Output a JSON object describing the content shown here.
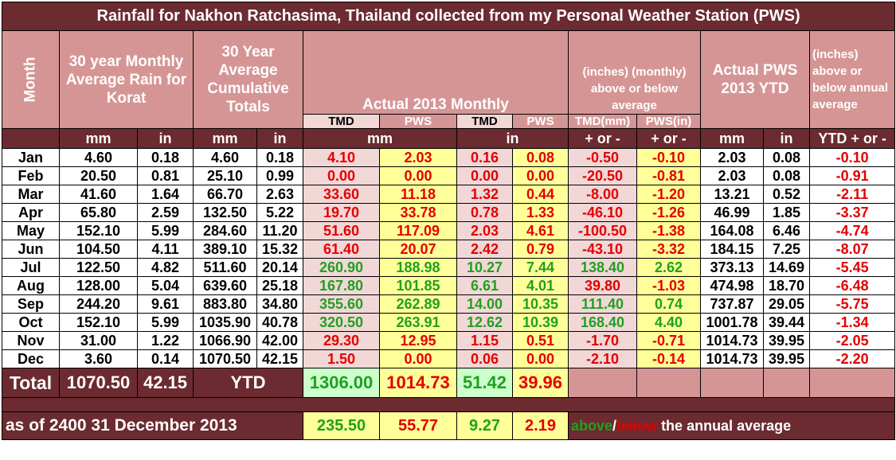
{
  "title": "Rainfall for Nakhon Ratchasima, Thailand collected from my Personal Weather Station (PWS)",
  "headers": {
    "month": "Month",
    "avg_monthly": "30 year Monthly Average Rain for Korat",
    "avg_cumulative": "30 Year Average Cumulative Totals",
    "actual_monthly": "Actual 2013 Monthly",
    "monthly_dev": "(inches) (monthly) above or below average",
    "actual_ytd": "Actual PWS 2013 YTD",
    "annual_dev": "(inches) above or below annual average"
  },
  "subheaders": {
    "tmd": "TMD",
    "pws": "PWS",
    "tmd_mm": "TMD(mm)",
    "pws_in": "PWS(in)"
  },
  "units": {
    "mm": "mm",
    "in": "in",
    "plus_minus": "+ or -",
    "ytd_plus_minus": "YTD + or -"
  },
  "rows": [
    {
      "month": "Jan",
      "avg_mm": "4.60",
      "avg_in": "0.18",
      "cum_mm": "4.60",
      "cum_in": "0.18",
      "tmd_mm": "4.10",
      "pws_mm": "2.03",
      "tmd_in": "0.16",
      "pws_in": "0.08",
      "dev_tmd": "-0.50",
      "dev_pws": "-0.10",
      "ytd_mm": "2.03",
      "ytd_in": "0.08",
      "ytd_dev": "-0.10",
      "c_mm": "red",
      "c_in": "red",
      "c_dt": "red",
      "c_dp": "red"
    },
    {
      "month": "Feb",
      "avg_mm": "20.50",
      "avg_in": "0.81",
      "cum_mm": "25.10",
      "cum_in": "0.99",
      "tmd_mm": "0.00",
      "pws_mm": "0.00",
      "tmd_in": "0.00",
      "pws_in": "0.00",
      "dev_tmd": "-20.50",
      "dev_pws": "-0.81",
      "ytd_mm": "2.03",
      "ytd_in": "0.08",
      "ytd_dev": "-0.91",
      "c_mm": "red",
      "c_in": "red",
      "c_dt": "red",
      "c_dp": "red"
    },
    {
      "month": "Mar",
      "avg_mm": "41.60",
      "avg_in": "1.64",
      "cum_mm": "66.70",
      "cum_in": "2.63",
      "tmd_mm": "33.60",
      "pws_mm": "11.18",
      "tmd_in": "1.32",
      "pws_in": "0.44",
      "dev_tmd": "-8.00",
      "dev_pws": "-1.20",
      "ytd_mm": "13.21",
      "ytd_in": "0.52",
      "ytd_dev": "-2.11",
      "c_mm": "red",
      "c_in": "red",
      "c_dt": "red",
      "c_dp": "red"
    },
    {
      "month": "Apr",
      "avg_mm": "65.80",
      "avg_in": "2.59",
      "cum_mm": "132.50",
      "cum_in": "5.22",
      "tmd_mm": "19.70",
      "pws_mm": "33.78",
      "tmd_in": "0.78",
      "pws_in": "1.33",
      "dev_tmd": "-46.10",
      "dev_pws": "-1.26",
      "ytd_mm": "46.99",
      "ytd_in": "1.85",
      "ytd_dev": "-3.37",
      "c_mm": "red",
      "c_in": "red",
      "c_dt": "red",
      "c_dp": "red"
    },
    {
      "month": "May",
      "avg_mm": "152.10",
      "avg_in": "5.99",
      "cum_mm": "284.60",
      "cum_in": "11.20",
      "tmd_mm": "51.60",
      "pws_mm": "117.09",
      "tmd_in": "2.03",
      "pws_in": "4.61",
      "dev_tmd": "-100.50",
      "dev_pws": "-1.38",
      "ytd_mm": "164.08",
      "ytd_in": "6.46",
      "ytd_dev": "-4.74",
      "c_mm": "red",
      "c_in": "red",
      "c_dt": "red",
      "c_dp": "red"
    },
    {
      "month": "Jun",
      "avg_mm": "104.50",
      "avg_in": "4.11",
      "cum_mm": "389.10",
      "cum_in": "15.32",
      "tmd_mm": "61.40",
      "pws_mm": "20.07",
      "tmd_in": "2.42",
      "pws_in": "0.79",
      "dev_tmd": "-43.10",
      "dev_pws": "-3.32",
      "ytd_mm": "184.15",
      "ytd_in": "7.25",
      "ytd_dev": "-8.07",
      "c_mm": "red",
      "c_in": "red",
      "c_dt": "red",
      "c_dp": "red"
    },
    {
      "month": "Jul",
      "avg_mm": "122.50",
      "avg_in": "4.82",
      "cum_mm": "511.60",
      "cum_in": "20.14",
      "tmd_mm": "260.90",
      "pws_mm": "188.98",
      "tmd_in": "10.27",
      "pws_in": "7.44",
      "dev_tmd": "138.40",
      "dev_pws": "2.62",
      "ytd_mm": "373.13",
      "ytd_in": "14.69",
      "ytd_dev": "-5.45",
      "c_mm": "green",
      "c_in": "green",
      "c_dt": "green",
      "c_dp": "green"
    },
    {
      "month": "Aug",
      "avg_mm": "128.00",
      "avg_in": "5.04",
      "cum_mm": "639.60",
      "cum_in": "25.18",
      "tmd_mm": "167.80",
      "pws_mm": "101.85",
      "tmd_in": "6.61",
      "pws_in": "4.01",
      "dev_tmd": "39.80",
      "dev_pws": "-1.03",
      "ytd_mm": "474.98",
      "ytd_in": "18.70",
      "ytd_dev": "-6.48",
      "c_mm": "green",
      "c_in": "green",
      "c_dt": "red",
      "c_dp": "red"
    },
    {
      "month": "Sep",
      "avg_mm": "244.20",
      "avg_in": "9.61",
      "cum_mm": "883.80",
      "cum_in": "34.80",
      "tmd_mm": "355.60",
      "pws_mm": "262.89",
      "tmd_in": "14.00",
      "pws_in": "10.35",
      "dev_tmd": "111.40",
      "dev_pws": "0.74",
      "ytd_mm": "737.87",
      "ytd_in": "29.05",
      "ytd_dev": "-5.75",
      "c_mm": "green",
      "c_in": "green",
      "c_dt": "green",
      "c_dp": "green"
    },
    {
      "month": "Oct",
      "avg_mm": "152.10",
      "avg_in": "5.99",
      "cum_mm": "1035.90",
      "cum_in": "40.78",
      "tmd_mm": "320.50",
      "pws_mm": "263.91",
      "tmd_in": "12.62",
      "pws_in": "10.39",
      "dev_tmd": "168.40",
      "dev_pws": "4.40",
      "ytd_mm": "1001.78",
      "ytd_in": "39.44",
      "ytd_dev": "-1.34",
      "c_mm": "green",
      "c_in": "green",
      "c_dt": "green",
      "c_dp": "green"
    },
    {
      "month": "Nov",
      "avg_mm": "31.00",
      "avg_in": "1.22",
      "cum_mm": "1066.90",
      "cum_in": "42.00",
      "tmd_mm": "29.30",
      "pws_mm": "12.95",
      "tmd_in": "1.15",
      "pws_in": "0.51",
      "dev_tmd": "-1.70",
      "dev_pws": "-0.71",
      "ytd_mm": "1014.73",
      "ytd_in": "39.95",
      "ytd_dev": "-2.05",
      "c_mm": "red",
      "c_in": "red",
      "c_dt": "red",
      "c_dp": "red"
    },
    {
      "month": "Dec",
      "avg_mm": "3.60",
      "avg_in": "0.14",
      "cum_mm": "1070.50",
      "cum_in": "42.15",
      "tmd_mm": "1.50",
      "pws_mm": "0.00",
      "tmd_in": "0.06",
      "pws_in": "0.00",
      "dev_tmd": "-2.10",
      "dev_pws": "-0.14",
      "ytd_mm": "1014.73",
      "ytd_in": "39.95",
      "ytd_dev": "-2.20",
      "c_mm": "red",
      "c_in": "red",
      "c_dt": "red",
      "c_dp": "red"
    }
  ],
  "total": {
    "label": "Total",
    "avg_mm": "1070.50",
    "avg_in": "42.15",
    "ytd_label": "YTD",
    "tmd_mm": "1306.00",
    "pws_mm": "1014.73",
    "tmd_in": "51.42",
    "pws_in": "39.96"
  },
  "footer": {
    "as_of": "as of 2400 31 December 2013",
    "tmd_mm": "235.50",
    "pws_mm": "55.77",
    "tmd_in": "9.27",
    "pws_in": "2.19",
    "note_above": "above",
    "note_slash": "/",
    "note_below": "below",
    "note_rest": " the annual average"
  },
  "colors": {
    "maroon": "#6b2b30",
    "pink": "#d69595",
    "light_pink": "#f2d7d7",
    "yellow": "#ffff99",
    "light_green": "#ccffcc",
    "red": "#e30000",
    "green": "#20a020"
  }
}
